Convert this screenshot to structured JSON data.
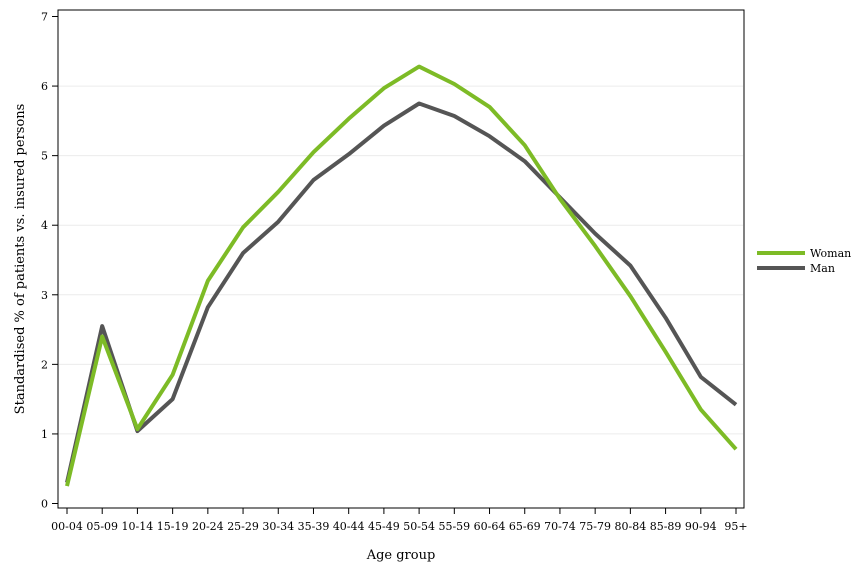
{
  "chart_data": {
    "type": "line",
    "xlabel": "Age group",
    "ylabel": "Standardised % of patients vs. insured persons",
    "ylim": [
      0,
      7
    ],
    "yticks": [
      0,
      1,
      2,
      3,
      4,
      5,
      6,
      7
    ],
    "grid": "horizontal",
    "legend_position": "right",
    "categories": [
      "00-04",
      "05-09",
      "10-14",
      "15-19",
      "20-24",
      "25-29",
      "30-34",
      "35-39",
      "40-44",
      "45-49",
      "50-54",
      "55-59",
      "60-64",
      "65-69",
      "70-74",
      "75-79",
      "80-84",
      "85-89",
      "90-94",
      "95+"
    ],
    "series": [
      {
        "name": "Woman",
        "color": "#7dbb26",
        "values": [
          0.25,
          2.4,
          1.07,
          1.85,
          3.2,
          3.97,
          4.48,
          5.05,
          5.53,
          5.97,
          6.28,
          6.03,
          5.7,
          5.15,
          4.38,
          3.7,
          2.98,
          2.18,
          1.35,
          0.78
        ]
      },
      {
        "name": "Man",
        "color": "#555555",
        "values": [
          0.3,
          2.55,
          1.04,
          1.5,
          2.82,
          3.6,
          4.05,
          4.65,
          5.02,
          5.43,
          5.75,
          5.57,
          5.28,
          4.92,
          4.4,
          3.88,
          3.42,
          2.67,
          1.82,
          1.42
        ]
      }
    ]
  }
}
